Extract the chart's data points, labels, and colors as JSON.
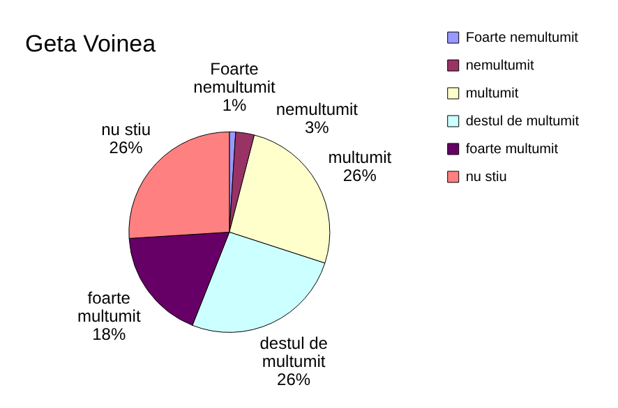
{
  "chart_data": {
    "type": "pie",
    "title": "Geta Voinea",
    "categories": [
      "Foarte nemultumit",
      "nemultumit",
      "multumit",
      "destul de multumit",
      "foarte multumit",
      "nu stiu"
    ],
    "values": [
      1,
      3,
      26,
      26,
      18,
      26
    ],
    "colors": [
      "#9999ff",
      "#993366",
      "#ffffcc",
      "#ccffff",
      "#660066",
      "#ff8080"
    ],
    "value_labels": [
      "1%",
      "3%",
      "26%",
      "26%",
      "18%",
      "26%"
    ],
    "legend": "top right"
  }
}
